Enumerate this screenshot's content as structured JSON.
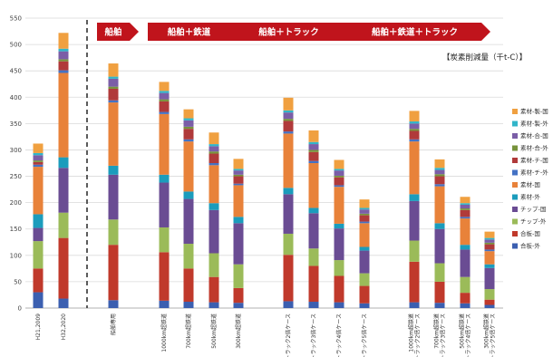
{
  "chart_data": {
    "type": "bar",
    "stacked": true,
    "unit_label": "【炭素削減量（千t-C）】",
    "yticks": [
      0,
      50,
      100,
      150,
      200,
      250,
      300,
      350,
      400,
      450,
      500,
      550
    ],
    "ylim": [
      0,
      550
    ],
    "grid": true,
    "legend_position": "right",
    "banners": [
      {
        "label": "船舶",
        "from": 2,
        "to": 2
      },
      {
        "label": "船舶＋鉄道",
        "from": 3,
        "to": 5
      },
      {
        "label": "船舶＋トラック",
        "from": 6,
        "to": 9
      },
      {
        "label": "船舶＋鉄道＋トラック",
        "from": 10,
        "to": 13
      }
    ],
    "categories": [
      [
        "H21,2009"
      ],
      [
        "H32,2020"
      ],
      [
        "船舶専用"
      ],
      [
        "1000km超鉄道"
      ],
      [
        "700km超鉄道"
      ],
      [
        "500km超鉄道"
      ],
      [
        "300km超鉄道"
      ],
      [
        "トラック2倍ケース"
      ],
      [
        "トラック3倍ケース"
      ],
      [
        "トラック4倍ケース"
      ],
      [
        "トラック5倍ケース"
      ],
      [
        "1000km超鉄道",
        "+トラック2倍ケース"
      ],
      [
        "700km超鉄道",
        "+トラック3倍ケース"
      ],
      [
        "500km超鉄道",
        "+トラック4倍ケース"
      ],
      [
        "300km超鉄道",
        "+トラック5倍ケース"
      ]
    ],
    "series": [
      {
        "name": "合板-外",
        "color": "#3b5fb0",
        "values": [
          30,
          18,
          15,
          14,
          12,
          11,
          10,
          13,
          12,
          11,
          9,
          11,
          10,
          9,
          6
        ]
      },
      {
        "name": "合板-国",
        "color": "#c0392b",
        "values": [
          45,
          115,
          105,
          92,
          63,
          48,
          28,
          88,
          68,
          50,
          33,
          77,
          40,
          20,
          10
        ]
      },
      {
        "name": "チップ-外",
        "color": "#9bbb59",
        "values": [
          52,
          48,
          48,
          47,
          47,
          45,
          45,
          40,
          33,
          30,
          24,
          40,
          35,
          30,
          20
        ]
      },
      {
        "name": "チップ-国",
        "color": "#6a4c93",
        "values": [
          25,
          85,
          85,
          85,
          85,
          82,
          78,
          75,
          67,
          60,
          43,
          75,
          65,
          52,
          40
        ]
      },
      {
        "name": "素材-外",
        "color": "#1b9cbc",
        "values": [
          26,
          20,
          17,
          15,
          14,
          13,
          12,
          12,
          10,
          9,
          7,
          13,
          11,
          9,
          7
        ]
      },
      {
        "name": "素材-国",
        "color": "#e8823a",
        "values": [
          90,
          160,
          120,
          115,
          95,
          72,
          60,
          103,
          85,
          70,
          45,
          100,
          70,
          50,
          25
        ]
      },
      {
        "name": "素材-チ-外",
        "color": "#4472c4",
        "values": [
          4,
          5,
          4,
          4,
          4,
          4,
          3,
          4,
          4,
          3,
          3,
          4,
          4,
          3,
          3
        ]
      },
      {
        "name": "素材-チ-国",
        "color": "#b03a3a",
        "values": [
          5,
          17,
          22,
          20,
          20,
          18,
          14,
          20,
          17,
          15,
          12,
          16,
          15,
          13,
          10
        ]
      },
      {
        "name": "素材-合-外",
        "color": "#77933c",
        "values": [
          3,
          4,
          4,
          4,
          4,
          4,
          3,
          4,
          4,
          3,
          3,
          4,
          4,
          3,
          3
        ]
      },
      {
        "name": "素材-合-国",
        "color": "#7b5ea7",
        "values": [
          10,
          15,
          15,
          12,
          12,
          10,
          8,
          12,
          11,
          10,
          8,
          10,
          8,
          7,
          6
        ]
      },
      {
        "name": "素材-製-外",
        "color": "#31b5c9",
        "values": [
          4,
          5,
          4,
          4,
          4,
          4,
          3,
          4,
          4,
          3,
          3,
          4,
          4,
          3,
          3
        ]
      },
      {
        "name": "素材-製-国",
        "color": "#f0a040",
        "values": [
          18,
          30,
          25,
          17,
          17,
          22,
          19,
          24,
          22,
          17,
          16,
          20,
          16,
          12,
          12
        ]
      }
    ]
  }
}
